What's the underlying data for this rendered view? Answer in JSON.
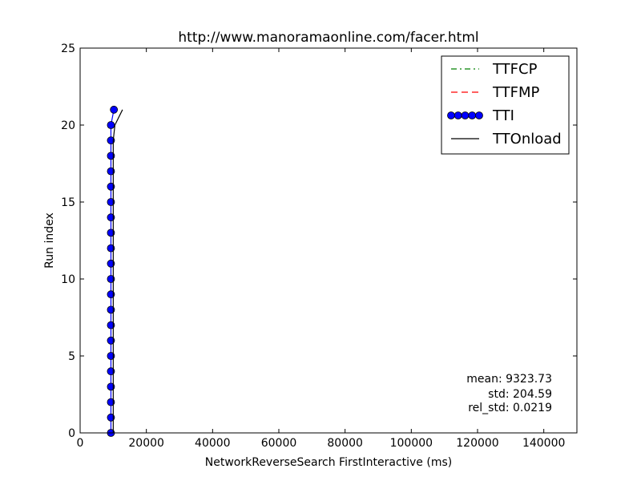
{
  "chart_data": {
    "type": "line",
    "title": "http://www.manoramaonline.com/facer.html",
    "xlabel": "NetworkReverseSearch FirstInteractive (ms)",
    "ylabel": "Run index",
    "xlim": [
      0,
      150000
    ],
    "ylim": [
      0,
      25
    ],
    "xticks": [
      0,
      20000,
      40000,
      60000,
      80000,
      100000,
      120000,
      140000
    ],
    "yticks": [
      0,
      5,
      10,
      15,
      20,
      25
    ],
    "grid": false,
    "legend_position": "top-right",
    "series": [
      {
        "name": "TTFCP",
        "style": "dashdot",
        "color": "#008000",
        "x": [],
        "y": []
      },
      {
        "name": "TTFMP",
        "style": "dashed",
        "color": "#ff0000",
        "x": [],
        "y": []
      },
      {
        "name": "TTI",
        "style": "line-marker",
        "color": "#0000ff",
        "x": [
          9300,
          9300,
          9300,
          9300,
          9300,
          9300,
          9300,
          9300,
          9300,
          9300,
          9300,
          9300,
          9300,
          9300,
          9300,
          9300,
          9300,
          9300,
          9300,
          9300,
          9300,
          10200
        ],
        "y": [
          0,
          1,
          2,
          3,
          4,
          5,
          6,
          7,
          8,
          9,
          10,
          11,
          12,
          13,
          14,
          15,
          16,
          17,
          18,
          19,
          20,
          21
        ]
      },
      {
        "name": "TTOnload",
        "style": "solid",
        "color": "#000000",
        "x": [
          10000,
          10000,
          10000,
          10000,
          10000,
          10000,
          10000,
          10000,
          10000,
          10000,
          10000,
          10000,
          10000,
          10000,
          10000,
          10000,
          10000,
          10000,
          10000,
          10000,
          10500,
          12800
        ],
        "y": [
          0,
          1,
          2,
          3,
          4,
          5,
          6,
          7,
          8,
          9,
          10,
          11,
          12,
          13,
          14,
          15,
          16,
          17,
          18,
          19,
          20,
          21
        ]
      }
    ],
    "annotations": {
      "mean": "mean: 9323.73",
      "std": "std: 204.59",
      "rel_std": "rel_std: 0.0219"
    }
  }
}
